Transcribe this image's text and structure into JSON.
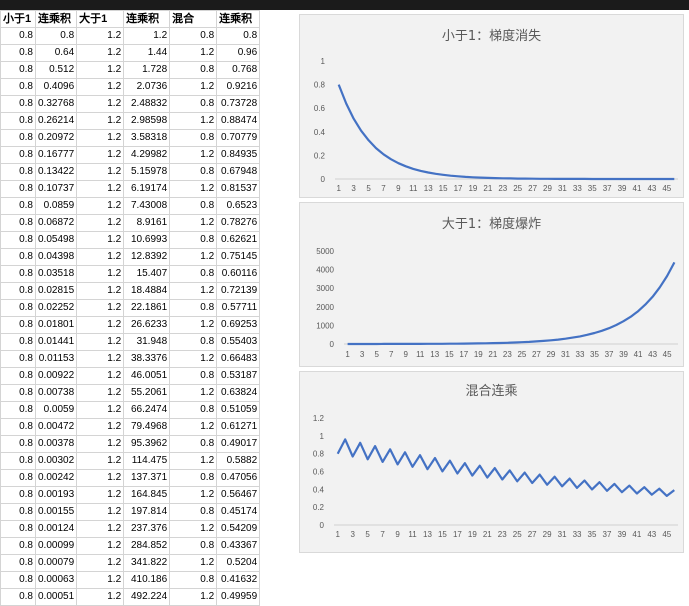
{
  "headers": [
    "小于1",
    "连乘积",
    "大于1",
    "连乘积",
    "混合",
    "连乘积"
  ],
  "rows": [
    [
      "0.8",
      "0.8",
      "1.2",
      "1.2",
      "0.8",
      "0.8"
    ],
    [
      "0.8",
      "0.64",
      "1.2",
      "1.44",
      "1.2",
      "0.96"
    ],
    [
      "0.8",
      "0.512",
      "1.2",
      "1.728",
      "0.8",
      "0.768"
    ],
    [
      "0.8",
      "0.4096",
      "1.2",
      "2.0736",
      "1.2",
      "0.9216"
    ],
    [
      "0.8",
      "0.32768",
      "1.2",
      "2.48832",
      "0.8",
      "0.73728"
    ],
    [
      "0.8",
      "0.26214",
      "1.2",
      "2.98598",
      "1.2",
      "0.88474"
    ],
    [
      "0.8",
      "0.20972",
      "1.2",
      "3.58318",
      "0.8",
      "0.70779"
    ],
    [
      "0.8",
      "0.16777",
      "1.2",
      "4.29982",
      "1.2",
      "0.84935"
    ],
    [
      "0.8",
      "0.13422",
      "1.2",
      "5.15978",
      "0.8",
      "0.67948"
    ],
    [
      "0.8",
      "0.10737",
      "1.2",
      "6.19174",
      "1.2",
      "0.81537"
    ],
    [
      "0.8",
      "0.0859",
      "1.2",
      "7.43008",
      "0.8",
      "0.6523"
    ],
    [
      "0.8",
      "0.06872",
      "1.2",
      "8.9161",
      "1.2",
      "0.78276"
    ],
    [
      "0.8",
      "0.05498",
      "1.2",
      "10.6993",
      "0.8",
      "0.62621"
    ],
    [
      "0.8",
      "0.04398",
      "1.2",
      "12.8392",
      "1.2",
      "0.75145"
    ],
    [
      "0.8",
      "0.03518",
      "1.2",
      "15.407",
      "0.8",
      "0.60116"
    ],
    [
      "0.8",
      "0.02815",
      "1.2",
      "18.4884",
      "1.2",
      "0.72139"
    ],
    [
      "0.8",
      "0.02252",
      "1.2",
      "22.1861",
      "0.8",
      "0.57711"
    ],
    [
      "0.8",
      "0.01801",
      "1.2",
      "26.6233",
      "1.2",
      "0.69253"
    ],
    [
      "0.8",
      "0.01441",
      "1.2",
      "31.948",
      "0.8",
      "0.55403"
    ],
    [
      "0.8",
      "0.01153",
      "1.2",
      "38.3376",
      "1.2",
      "0.66483"
    ],
    [
      "0.8",
      "0.00922",
      "1.2",
      "46.0051",
      "0.8",
      "0.53187"
    ],
    [
      "0.8",
      "0.00738",
      "1.2",
      "55.2061",
      "1.2",
      "0.63824"
    ],
    [
      "0.8",
      "0.0059",
      "1.2",
      "66.2474",
      "0.8",
      "0.51059"
    ],
    [
      "0.8",
      "0.00472",
      "1.2",
      "79.4968",
      "1.2",
      "0.61271"
    ],
    [
      "0.8",
      "0.00378",
      "1.2",
      "95.3962",
      "0.8",
      "0.49017"
    ],
    [
      "0.8",
      "0.00302",
      "1.2",
      "114.475",
      "1.2",
      "0.5882"
    ],
    [
      "0.8",
      "0.00242",
      "1.2",
      "137.371",
      "0.8",
      "0.47056"
    ],
    [
      "0.8",
      "0.00193",
      "1.2",
      "164.845",
      "1.2",
      "0.56467"
    ],
    [
      "0.8",
      "0.00155",
      "1.2",
      "197.814",
      "0.8",
      "0.45174"
    ],
    [
      "0.8",
      "0.00124",
      "1.2",
      "237.376",
      "1.2",
      "0.54209"
    ],
    [
      "0.8",
      "0.00099",
      "1.2",
      "284.852",
      "0.8",
      "0.43367"
    ],
    [
      "0.8",
      "0.00079",
      "1.2",
      "341.822",
      "1.2",
      "0.5204"
    ],
    [
      "0.8",
      "0.00063",
      "1.2",
      "410.186",
      "0.8",
      "0.41632"
    ],
    [
      "0.8",
      "0.00051",
      "1.2",
      "492.224",
      "1.2",
      "0.49959"
    ]
  ],
  "chart_data": [
    {
      "type": "line",
      "title": "小于1：梯度消失",
      "x_tick_labels": [
        "1",
        "3",
        "5",
        "7",
        "9",
        "11",
        "13",
        "15",
        "17",
        "19",
        "21",
        "23",
        "25",
        "27",
        "29",
        "31",
        "33",
        "35",
        "37",
        "39",
        "41",
        "43",
        "45"
      ],
      "y_tick_labels": [
        "0",
        "0.2",
        "0.4",
        "0.6",
        "0.8",
        "1"
      ],
      "ylim": [
        0,
        1
      ],
      "n_points": 46,
      "base": 0.8,
      "pattern": "power",
      "color": "#4472c4"
    },
    {
      "type": "line",
      "title": "大于1：梯度爆炸",
      "x_tick_labels": [
        "1",
        "3",
        "5",
        "7",
        "9",
        "11",
        "13",
        "15",
        "17",
        "19",
        "21",
        "23",
        "25",
        "27",
        "29",
        "31",
        "33",
        "35",
        "37",
        "39",
        "41",
        "43",
        "45"
      ],
      "y_tick_labels": [
        "0",
        "1000",
        "2000",
        "3000",
        "4000",
        "5000"
      ],
      "ylim": [
        0,
        5000
      ],
      "n_points": 46,
      "base": 1.2,
      "pattern": "power",
      "color": "#4472c4"
    },
    {
      "type": "line",
      "title": "混合连乘",
      "x_tick_labels": [
        "1",
        "3",
        "5",
        "7",
        "9",
        "11",
        "13",
        "15",
        "17",
        "19",
        "21",
        "23",
        "25",
        "27",
        "29",
        "31",
        "33",
        "35",
        "37",
        "39",
        "41",
        "43",
        "45"
      ],
      "y_tick_labels": [
        "0",
        "0.2",
        "0.4",
        "0.6",
        "0.8",
        "1",
        "1.2"
      ],
      "ylim": [
        0,
        1.2
      ],
      "n_points": 46,
      "factors": [
        0.8,
        1.2
      ],
      "pattern": "alternating",
      "color": "#4472c4"
    }
  ]
}
